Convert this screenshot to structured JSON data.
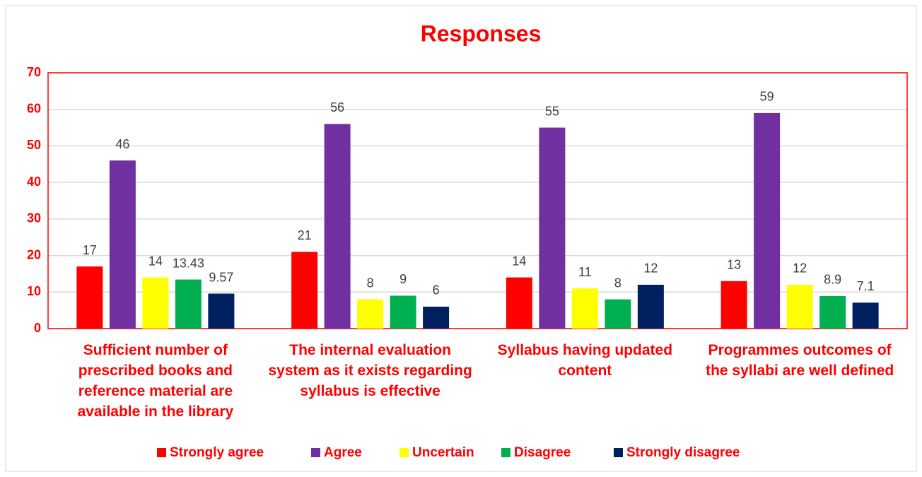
{
  "chart_data": {
    "type": "bar",
    "title": "Responses",
    "categories": [
      "Sufficient number of prescribed books and reference material are available in the library",
      "The internal evaluation system as it exists regarding syllabus is effective",
      "Syllabus having updated content",
      "Programmes outcomes of the syllabi are well defined"
    ],
    "series": [
      {
        "name": "Strongly agree",
        "color": "#ff0000",
        "values": [
          17,
          21,
          14,
          13
        ]
      },
      {
        "name": "Agree",
        "color": "#7030a0",
        "values": [
          46,
          56,
          55,
          59
        ]
      },
      {
        "name": "Uncertain",
        "color": "#ffff00",
        "values": [
          14,
          8,
          11,
          12
        ]
      },
      {
        "name": "Disagree",
        "color": "#00b050",
        "values": [
          13.43,
          9,
          8,
          8.9
        ]
      },
      {
        "name": "Strongly disagree",
        "color": "#002060",
        "values": [
          9.57,
          6,
          12,
          7.1
        ]
      }
    ],
    "ylim": [
      0,
      70
    ],
    "yticks": [
      0,
      10,
      20,
      30,
      40,
      50,
      60,
      70
    ],
    "grid": true,
    "legend": "bottom"
  }
}
